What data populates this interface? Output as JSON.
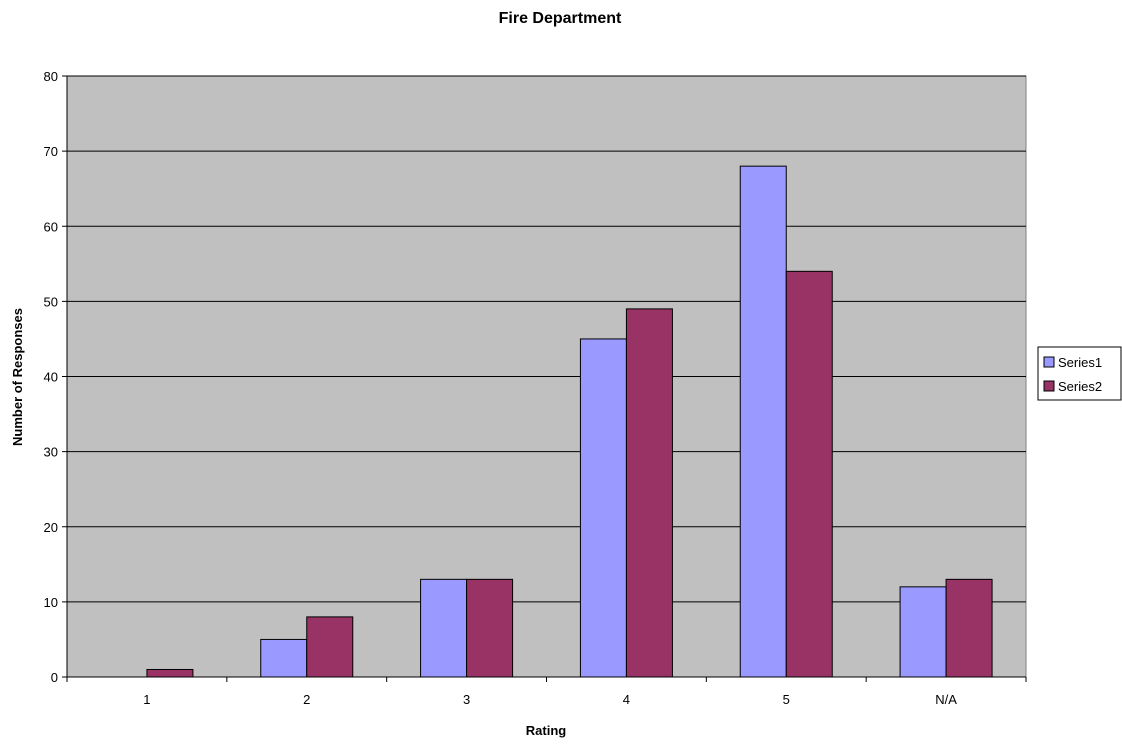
{
  "chart_data": {
    "type": "bar",
    "title": "Fire Department",
    "xlabel": "Rating",
    "ylabel": "Number of Responses",
    "categories": [
      "1",
      "2",
      "3",
      "4",
      "5",
      "N/A"
    ],
    "series": [
      {
        "name": "Series1",
        "values": [
          0,
          5,
          13,
          45,
          68,
          12
        ],
        "color": "#9999ff"
      },
      {
        "name": "Series2",
        "values": [
          1,
          8,
          13,
          49,
          54,
          13
        ],
        "color": "#993366"
      }
    ],
    "ylim": [
      0,
      80
    ],
    "yticks": [
      0,
      10,
      20,
      30,
      40,
      50,
      60,
      70,
      80
    ],
    "grid": true,
    "plot_background": "#c0c0c0",
    "legend_position": "right"
  }
}
